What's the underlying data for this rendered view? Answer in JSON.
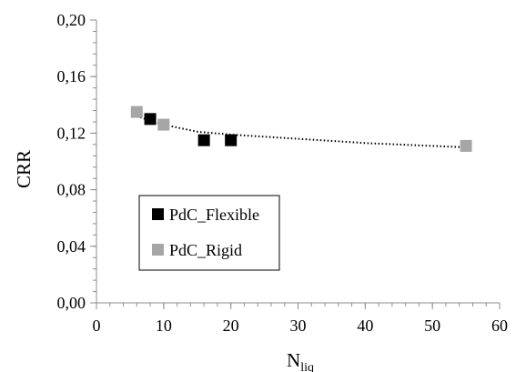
{
  "chart_data": {
    "type": "scatter",
    "title": "",
    "xlabel": "N",
    "xlabel_sub": "liq",
    "ylabel": "CRR",
    "xlim": [
      0,
      60
    ],
    "ylim": [
      0,
      0.2
    ],
    "x_ticks": [
      "0",
      "10",
      "20",
      "30",
      "40",
      "50",
      "60"
    ],
    "y_ticks": [
      "0,00",
      "0,04",
      "0,08",
      "0,12",
      "0,16",
      "0,20"
    ],
    "grid": false,
    "legend_position": "lower-left",
    "series": [
      {
        "name": "PdC_Flexible",
        "color": "#000000",
        "marker": "square",
        "points": [
          {
            "x": 8,
            "y": 0.13
          },
          {
            "x": 16,
            "y": 0.115
          },
          {
            "x": 20,
            "y": 0.115
          }
        ]
      },
      {
        "name": "PdC_Rigid",
        "color": "#a6a6a6",
        "marker": "square",
        "points": [
          {
            "x": 6,
            "y": 0.135
          },
          {
            "x": 10,
            "y": 0.126
          },
          {
            "x": 55,
            "y": 0.111
          }
        ]
      }
    ],
    "trendline": {
      "type": "power",
      "style": "dotted",
      "color": "#000000",
      "points": [
        {
          "x": 6,
          "y": 0.132
        },
        {
          "x": 10,
          "y": 0.126
        },
        {
          "x": 15,
          "y": 0.121
        },
        {
          "x": 20,
          "y": 0.119
        },
        {
          "x": 30,
          "y": 0.116
        },
        {
          "x": 40,
          "y": 0.113
        },
        {
          "x": 55,
          "y": 0.11
        }
      ]
    }
  }
}
